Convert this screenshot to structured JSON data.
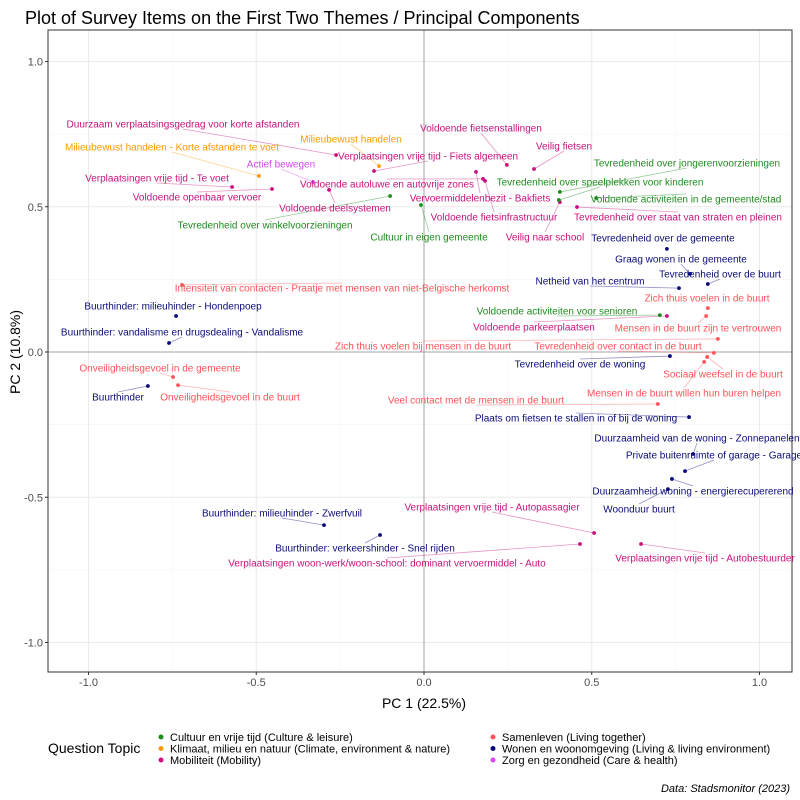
{
  "chart_data": {
    "type": "scatter",
    "title": "Plot of Survey Items on the First Two Themes / Principal Components",
    "xlabel": "PC 1 (22.5%)",
    "ylabel": "PC 2 (10.8%)",
    "xlim": [
      -1.1,
      1.1
    ],
    "ylim": [
      -1.1,
      1.1
    ],
    "xticks": [
      -1.0,
      -0.5,
      0.0,
      0.5,
      1.0
    ],
    "yticks": [
      -1.0,
      -0.5,
      0.0,
      0.5,
      1.0
    ],
    "xtick_labels": [
      "-1.0",
      "-0.5",
      "0.0",
      "0.5",
      "1.0"
    ],
    "ytick_labels": [
      "-1.0",
      "-0.5",
      "0.0",
      "0.5",
      "1.0"
    ],
    "grid": true,
    "legend": {
      "title": "Question Topic",
      "placement": "bottom",
      "entries": [
        {
          "key": "culture",
          "label": "Cultuur en vrije tijd (Culture & leisure)",
          "color": "#1E8C1E"
        },
        {
          "key": "climate",
          "label": "Klimaat, milieu en natuur (Climate, environment & nature)",
          "color": "#FF9A00"
        },
        {
          "key": "mobility",
          "label": "Mobiliteit (Mobility)",
          "color": "#C8127E"
        },
        {
          "key": "living_together",
          "label": "Samenleven (Living together)",
          "color": "#FF5359"
        },
        {
          "key": "living_env",
          "label": "Wonen en woonomgeving (Living & living environment)",
          "color": "#0A0A7A"
        },
        {
          "key": "care",
          "label": "Zorg en gezondheid (Care & health)",
          "color": "#D548F0"
        }
      ]
    },
    "points": [
      {
        "label": "Duurzaam verplaatsingsgedrag voor korte afstanden",
        "topic": "mobility",
        "x": -0.262,
        "y": 0.678
      },
      {
        "label": "Verplaatsingen vrije tijd - Fiets algemeen",
        "topic": "mobility",
        "x": -0.149,
        "y": 0.623
      },
      {
        "label": "Verplaatsingen vrije tijd - Te voet",
        "topic": "mobility",
        "x": -0.572,
        "y": 0.568
      },
      {
        "label": "Voldoende openbaar vervoer",
        "topic": "mobility",
        "x": -0.453,
        "y": 0.561
      },
      {
        "label": "Voldoende autoluwe en autovrije zones",
        "topic": "mobility",
        "x": 0.176,
        "y": 0.596
      },
      {
        "label": "Voldoende deelsystemen",
        "topic": "mobility",
        "x": -0.283,
        "y": 0.558
      },
      {
        "label": "Vervoermiddelenbezit - Bakfiets",
        "topic": "mobility",
        "x": 0.155,
        "y": 0.62
      },
      {
        "label": "Voldoende fietsenstallingen",
        "topic": "mobility",
        "x": 0.247,
        "y": 0.644
      },
      {
        "label": "Veilig fietsen",
        "topic": "mobility",
        "x": 0.328,
        "y": 0.63
      },
      {
        "label": "Voldoende fietsinfrastructuur",
        "topic": "mobility",
        "x": 0.182,
        "y": 0.589
      },
      {
        "label": "Veilig naar school",
        "topic": "mobility",
        "x": 0.405,
        "y": 0.516
      },
      {
        "label": "Tevredenheid over staat van straten en pleinen",
        "topic": "mobility",
        "x": 0.456,
        "y": 0.499
      },
      {
        "label": "Voldoende parkeerplaatsen",
        "topic": "mobility",
        "x": 0.724,
        "y": 0.124
      },
      {
        "label": "Verplaatsingen vrije tijd - Autopassagier",
        "topic": "mobility",
        "x": 0.507,
        "y": -0.623
      },
      {
        "label": "Verplaatsingen woon-werk/woon-school: dominant vervoermiddel - Auto",
        "topic": "mobility",
        "x": 0.465,
        "y": -0.661
      },
      {
        "label": "Verplaatsingen vrije tijd - Autobestuurder",
        "topic": "mobility",
        "x": 0.647,
        "y": -0.661
      },
      {
        "label": "Milieubewust handelen - Korte afstanden te voet",
        "topic": "climate",
        "x": -0.492,
        "y": 0.606
      },
      {
        "label": "Milieubewust handelen",
        "topic": "climate",
        "x": -0.134,
        "y": 0.64
      },
      {
        "label": "Actief bewegen",
        "topic": "care",
        "x": -0.331,
        "y": 0.585
      },
      {
        "label": "Tevredenheid over jongerenvoorzieningen",
        "topic": "culture",
        "x": 0.405,
        "y": 0.551
      },
      {
        "label": "Tevredenheid over speelplekken voor kinderen",
        "topic": "culture",
        "x": 0.402,
        "y": 0.523
      },
      {
        "label": "Voldoende activiteiten in de gemeente/stad",
        "topic": "culture",
        "x": 0.513,
        "y": 0.53
      },
      {
        "label": "Tevredenheid over winkelvoorzieningen",
        "topic": "culture",
        "x": -0.101,
        "y": 0.537
      },
      {
        "label": "Cultuur in eigen gemeente",
        "topic": "culture",
        "x": -0.009,
        "y": 0.506
      },
      {
        "label": "Voldoende activiteiten voor senioren",
        "topic": "culture",
        "x": 0.703,
        "y": 0.127
      },
      {
        "label": "Tevredenheid over de gemeente",
        "topic": "living_env",
        "x": 0.724,
        "y": 0.355
      },
      {
        "label": "Graag wonen in de gemeente",
        "topic": "living_env",
        "x": 0.793,
        "y": 0.269
      },
      {
        "label": "Tevredenheid over de buurt",
        "topic": "living_env",
        "x": 0.846,
        "y": 0.234
      },
      {
        "label": "Netheid van het centrum",
        "topic": "living_env",
        "x": 0.76,
        "y": 0.22
      },
      {
        "label": "Tevredenheid over de woning",
        "topic": "living_env",
        "x": 0.733,
        "y": -0.014
      },
      {
        "label": "Plaats om fietsen te stallen in of bij de woning",
        "topic": "living_env",
        "x": 0.79,
        "y": -0.224
      },
      {
        "label": "Duurzaamheid van de woning - Zonnepanelen",
        "topic": "living_env",
        "x": 0.802,
        "y": -0.351
      },
      {
        "label": "Private buitenruimte of garage - Garage",
        "topic": "living_env",
        "x": 0.778,
        "y": -0.41
      },
      {
        "label": "Duurzaamheid woning - energierecupererend",
        "topic": "living_env",
        "x": 0.739,
        "y": -0.437
      },
      {
        "label": "Woonduur buurt",
        "topic": "living_env",
        "x": 0.727,
        "y": -0.472
      },
      {
        "label": "Buurthinder: milieuhinder - Zwerfvuil",
        "topic": "living_env",
        "x": -0.298,
        "y": -0.596
      },
      {
        "label": "Buurthinder: verkeershinder - Snel rijden",
        "topic": "living_env",
        "x": -0.131,
        "y": -0.63
      },
      {
        "label": "Buurthinder: milieuhinder - Hondenpoep",
        "topic": "living_env",
        "x": -0.739,
        "y": 0.124
      },
      {
        "label": "Buurthinder: vandalisme en drugsdealing - Vandalisme",
        "topic": "living_env",
        "x": -0.76,
        "y": 0.031
      },
      {
        "label": "Buurthinder",
        "topic": "living_env",
        "x": -0.823,
        "y": -0.117
      },
      {
        "label": "Intensiteit van contacten - Praatje met mensen van niet-Belgische herkomst",
        "topic": "living_together",
        "x": -0.721,
        "y": 0.231
      },
      {
        "label": "Zich thuis voelen in de buurt",
        "topic": "living_together",
        "x": 0.846,
        "y": 0.151
      },
      {
        "label": "Mensen in de buurt zijn te vertrouwen",
        "topic": "living_together",
        "x": 0.841,
        "y": 0.124
      },
      {
        "label": "Zich thuis voelen bij mensen in de buurt",
        "topic": "living_together",
        "x": 0.876,
        "y": 0.045
      },
      {
        "label": "Tevredenheid over contact in de buurt",
        "topic": "living_together",
        "x": 0.864,
        "y": -0.003
      },
      {
        "label": "Sociaal weefsel in de buurt",
        "topic": "living_together",
        "x": 0.844,
        "y": -0.017
      },
      {
        "label": "Mensen in de buurt willen hun buren helpen",
        "topic": "living_together",
        "x": 0.835,
        "y": -0.034
      },
      {
        "label": "Veel contact met de mensen in de buurt",
        "topic": "living_together",
        "x": 0.697,
        "y": -0.179
      },
      {
        "label": "Onveiligheidsgevoel in de gemeente",
        "topic": "living_together",
        "x": -0.748,
        "y": -0.086
      },
      {
        "label": "Onveiligheidsgevoel in de buurt",
        "topic": "living_together",
        "x": -0.733,
        "y": -0.114
      }
    ],
    "caption": "Data: Stadsmonitor (2023)"
  }
}
